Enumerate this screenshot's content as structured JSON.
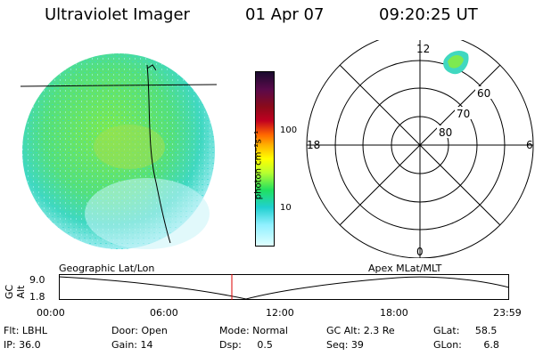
{
  "header": {
    "instrument": "Ultraviolet Imager",
    "date": "01 Apr 07",
    "time": "09:20:25 UT"
  },
  "colorbar": {
    "unit_label": "photon cm⁻²s⁻¹",
    "ticks": [
      "100",
      "10"
    ],
    "colors": [
      "#1a0a2e",
      "#5a0a4a",
      "#8b0a1a",
      "#c00020",
      "#ff6600",
      "#ffb000",
      "#ffff00",
      "#b8ff30",
      "#20e060",
      "#20d0d0",
      "#90f0ff",
      "#e0ffff"
    ]
  },
  "polar": {
    "hour_labels": {
      "top": "12",
      "left": "18",
      "right": "6",
      "bottom": "0"
    },
    "lat_labels": [
      "60",
      "70",
      "80"
    ]
  },
  "altitude_plot": {
    "ylabel": "GC Alt",
    "yticks": [
      "9.0",
      "1.8"
    ],
    "left_label": "Geographic Lat/Lon",
    "right_label": "Apex MLat/MLT",
    "xticks": [
      "00:00",
      "06:00",
      "12:00",
      "18:00",
      "23:59"
    ]
  },
  "status": {
    "flt": "Flt: LBHL",
    "ip": "IP: 36.0",
    "door": "Door: Open",
    "gain": "Gain: 14",
    "mode": "Mode: Normal",
    "dsp": "Dsp:     0.5",
    "gcalt": "GC Alt: 2.3 Re",
    "seq": "Seq: 39",
    "glat": "GLat:     58.5",
    "glon": "GLon:       6.8"
  }
}
